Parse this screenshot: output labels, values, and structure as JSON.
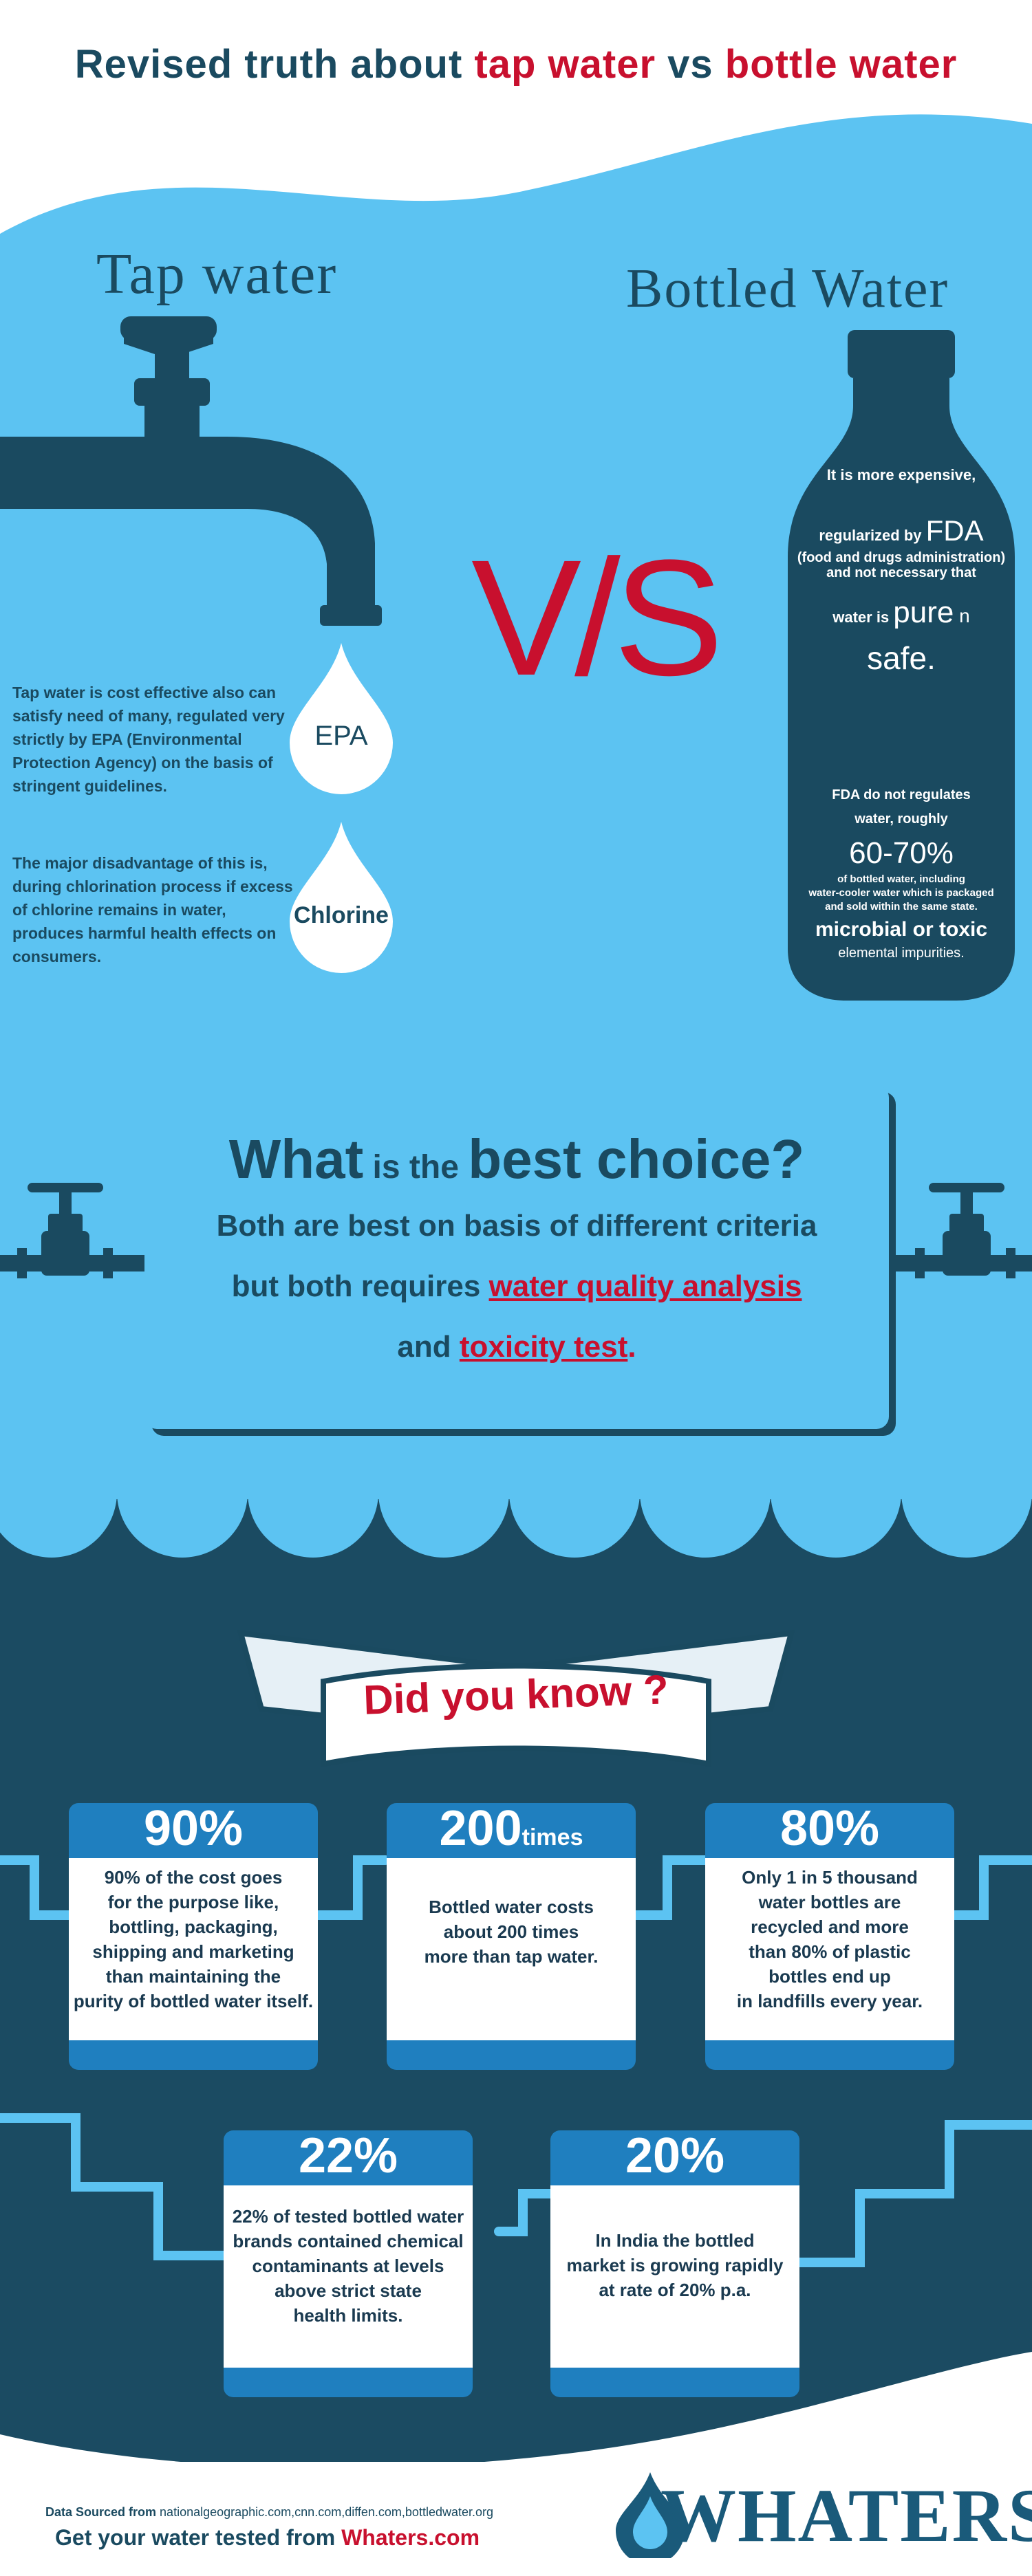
{
  "header": {
    "part1": "Revised truth about ",
    "part2": "tap water",
    "part3": " vs ",
    "part4": "bottle water"
  },
  "tap": {
    "title": "Tap water",
    "pro_text": "Tap water is cost effective also can satisfy need of many, regulated very strictly by EPA (Environmental Protection Agency) on the basis of stringent guidelines.",
    "con_text": "The major disadvantage of this is, during chlorination process if excess of chlorine remains in water, produces harmful health effects on consumers.",
    "drop1": "EPA",
    "drop2": "Chlorine"
  },
  "vs": "V/S",
  "bottle": {
    "title": "Bottled Water",
    "line1": "It is more expensive,",
    "line2a": "regularized by ",
    "line2b": "FDA",
    "line3": "(food and drugs administration)",
    "line4": "and not necessary that",
    "line5a": "water is ",
    "line5b": "pure",
    "line5c": " n",
    "line6": "safe.",
    "line7": "FDA do not regulates",
    "line8": "water, roughly",
    "line9": "60-70%",
    "line10": "of bottled water, including",
    "line11": "water-cooler water which is packaged",
    "line12": "and sold within the same state.",
    "line13": "microbial or toxic",
    "line14": "elemental impurities."
  },
  "choice": {
    "q1": "What",
    "q2": " is the ",
    "q3": "best choice?",
    "line1": "Both are best on basis of different criteria",
    "line2a": "but both requires ",
    "line2b": "water quality analysis",
    "line3a": "and ",
    "line3b": "toxicity test",
    "line3c": "."
  },
  "did_you_know": "Did you know ?",
  "stats": [
    {
      "num": "90%",
      "suffix": "",
      "text": [
        "90% of the cost goes",
        "for the purpose like,",
        "bottling, packaging,",
        "shipping and marketing",
        "than maintaining the",
        "purity of bottled water itself."
      ]
    },
    {
      "num": "200",
      "suffix": "times",
      "text": [
        "Bottled water costs",
        "about 200 times",
        "more than tap water."
      ]
    },
    {
      "num": "80%",
      "suffix": "",
      "text": [
        "Only 1 in 5 thousand",
        "water bottles are",
        "recycled and more",
        "than 80% of plastic",
        "bottles end up",
        "in landfills every year."
      ]
    },
    {
      "num": "22%",
      "suffix": "",
      "text": [
        "22% of tested bottled water",
        "brands contained chemical",
        "contaminants at levels",
        "above strict state",
        "health limits."
      ]
    },
    {
      "num": "20%",
      "suffix": "",
      "text": [
        "In India the bottled",
        "market is growing rapidly",
        "at rate of 20% p.a."
      ]
    }
  ],
  "footer": {
    "src_label": "Data Sourced from ",
    "src_value": "nationalgeographic.com,cnn.com,diffen.com,bottledwater.org",
    "cta_a": "Get your water tested from ",
    "cta_b": "Whaters.com",
    "brand": "WHATERS"
  },
  "colors": {
    "light_blue": "#5cc3f2",
    "dark_blue": "#1a4a60",
    "red": "#c8102e"
  }
}
